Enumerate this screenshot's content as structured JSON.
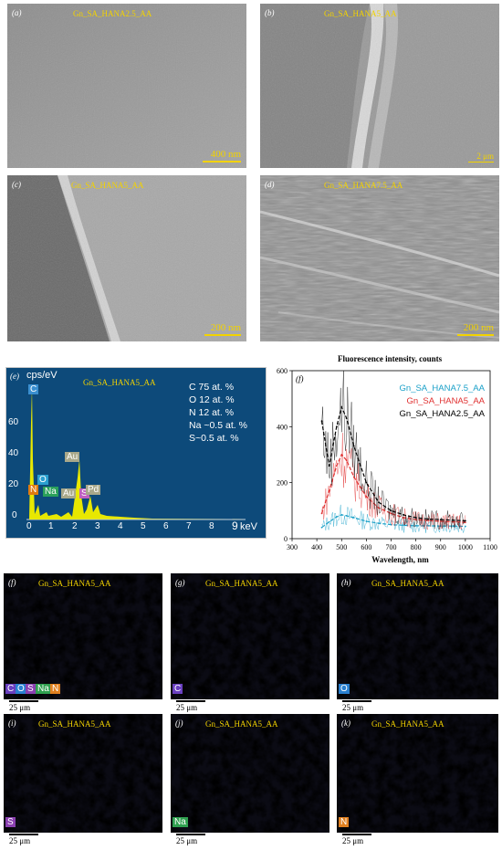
{
  "sem": [
    {
      "label": "(a)",
      "title": "Gn_SA_HANA2.5_AA",
      "scale": "400 nm"
    },
    {
      "label": "(b)",
      "title": "Gn_SA_HANA5_AA",
      "scale": "2 μm"
    },
    {
      "label": "(c)",
      "title": "Gn_SA_HANA5_AA",
      "scale": "200 nm"
    },
    {
      "label": "(d)",
      "title": "Gn_SA_HANA7.5_AA",
      "scale": "200 nm"
    }
  ],
  "eds": {
    "label": "(e)",
    "title": "Gn_SA_HANA5_AA",
    "ylabel": "cps/eV",
    "xunit": "keV",
    "composition": [
      "C 75 at. %",
      "O 12 at. %",
      "N 12 at. %",
      "Na ~0.5 at. %",
      "S~0.5 at. %"
    ],
    "yticks": [
      "60",
      "40",
      "20",
      "0"
    ],
    "xticks": [
      "0",
      "1",
      "2",
      "3",
      "4",
      "5",
      "6",
      "7",
      "8",
      "9"
    ],
    "peaks": [
      "C",
      "O",
      "N",
      "Na",
      "Au",
      "S",
      "Au",
      "Pd"
    ],
    "peak_colors": {
      "C": "#3a8fd0",
      "O": "#2a9fd0",
      "N": "#e07a10",
      "Na": "#2aa05a",
      "Au": "#b0b090",
      "S": "#c060c0",
      "Pd": "#b0b090"
    }
  },
  "chart_data": {
    "type": "line",
    "label": "(f)",
    "title": "Fluorescence intensity, counts",
    "xlabel": "Wavelength, nm",
    "ylabel": "",
    "xlim": [
      300,
      1100
    ],
    "ylim": [
      0,
      600
    ],
    "xticks": [
      "300",
      "400",
      "500",
      "600",
      "700",
      "800",
      "900",
      "1000",
      "1100"
    ],
    "yticks": [
      "0",
      "200",
      "400",
      "600"
    ],
    "x": [
      420,
      450,
      480,
      500,
      520,
      550,
      600,
      650,
      700,
      750,
      800,
      850,
      900,
      950,
      1000
    ],
    "series": [
      {
        "name": "Gn_SA_HANA7.5_AA",
        "color": "#1aa0c8",
        "values": [
          40,
          60,
          78,
          85,
          82,
          75,
          62,
          55,
          50,
          48,
          46,
          46,
          45,
          45,
          44
        ]
      },
      {
        "name": "Gn_SA_HANA5_AA",
        "color": "#e03030",
        "values": [
          90,
          170,
          260,
          300,
          280,
          220,
          150,
          110,
          90,
          75,
          68,
          65,
          62,
          60,
          58
        ]
      },
      {
        "name": "Gn_SA_HANA2.5_AA",
        "color": "#000000",
        "values": [
          420,
          260,
          400,
          470,
          430,
          330,
          200,
          130,
          100,
          85,
          75,
          70,
          68,
          66,
          64
        ]
      }
    ]
  },
  "maps": [
    {
      "label": "(f)",
      "title": "Gn_SA_HANA5_AA",
      "elements": [
        "C",
        "O",
        "S",
        "Na",
        "N"
      ],
      "scale": "25 μm",
      "color": "#1a7a8a"
    },
    {
      "label": "(g)",
      "title": "Gn_SA_HANA5_AA",
      "elements": [
        "C"
      ],
      "scale": "25 μm",
      "color": "#1e5ec8"
    },
    {
      "label": "(h)",
      "title": "Gn_SA_HANA5_AA",
      "elements": [
        "O"
      ],
      "scale": "25 μm",
      "color": "#1ab0c8"
    },
    {
      "label": "(i)",
      "title": "Gn_SA_HANA5_AA",
      "elements": [
        "S"
      ],
      "scale": "25 μm",
      "color": "#5a2aa8"
    },
    {
      "label": "(j)",
      "title": "Gn_SA_HANA5_AA",
      "elements": [
        "Na"
      ],
      "scale": "25 μm",
      "color": "#2aa83a"
    },
    {
      "label": "(k)",
      "title": "Gn_SA_HANA5_AA",
      "elements": [
        "N"
      ],
      "scale": "25 μm",
      "color": "#c8641a"
    }
  ],
  "map_element_colors": {
    "C": "#6a40c0",
    "O": "#2a80d0",
    "S": "#8a40b0",
    "Na": "#30a050",
    "N": "#e08020"
  }
}
